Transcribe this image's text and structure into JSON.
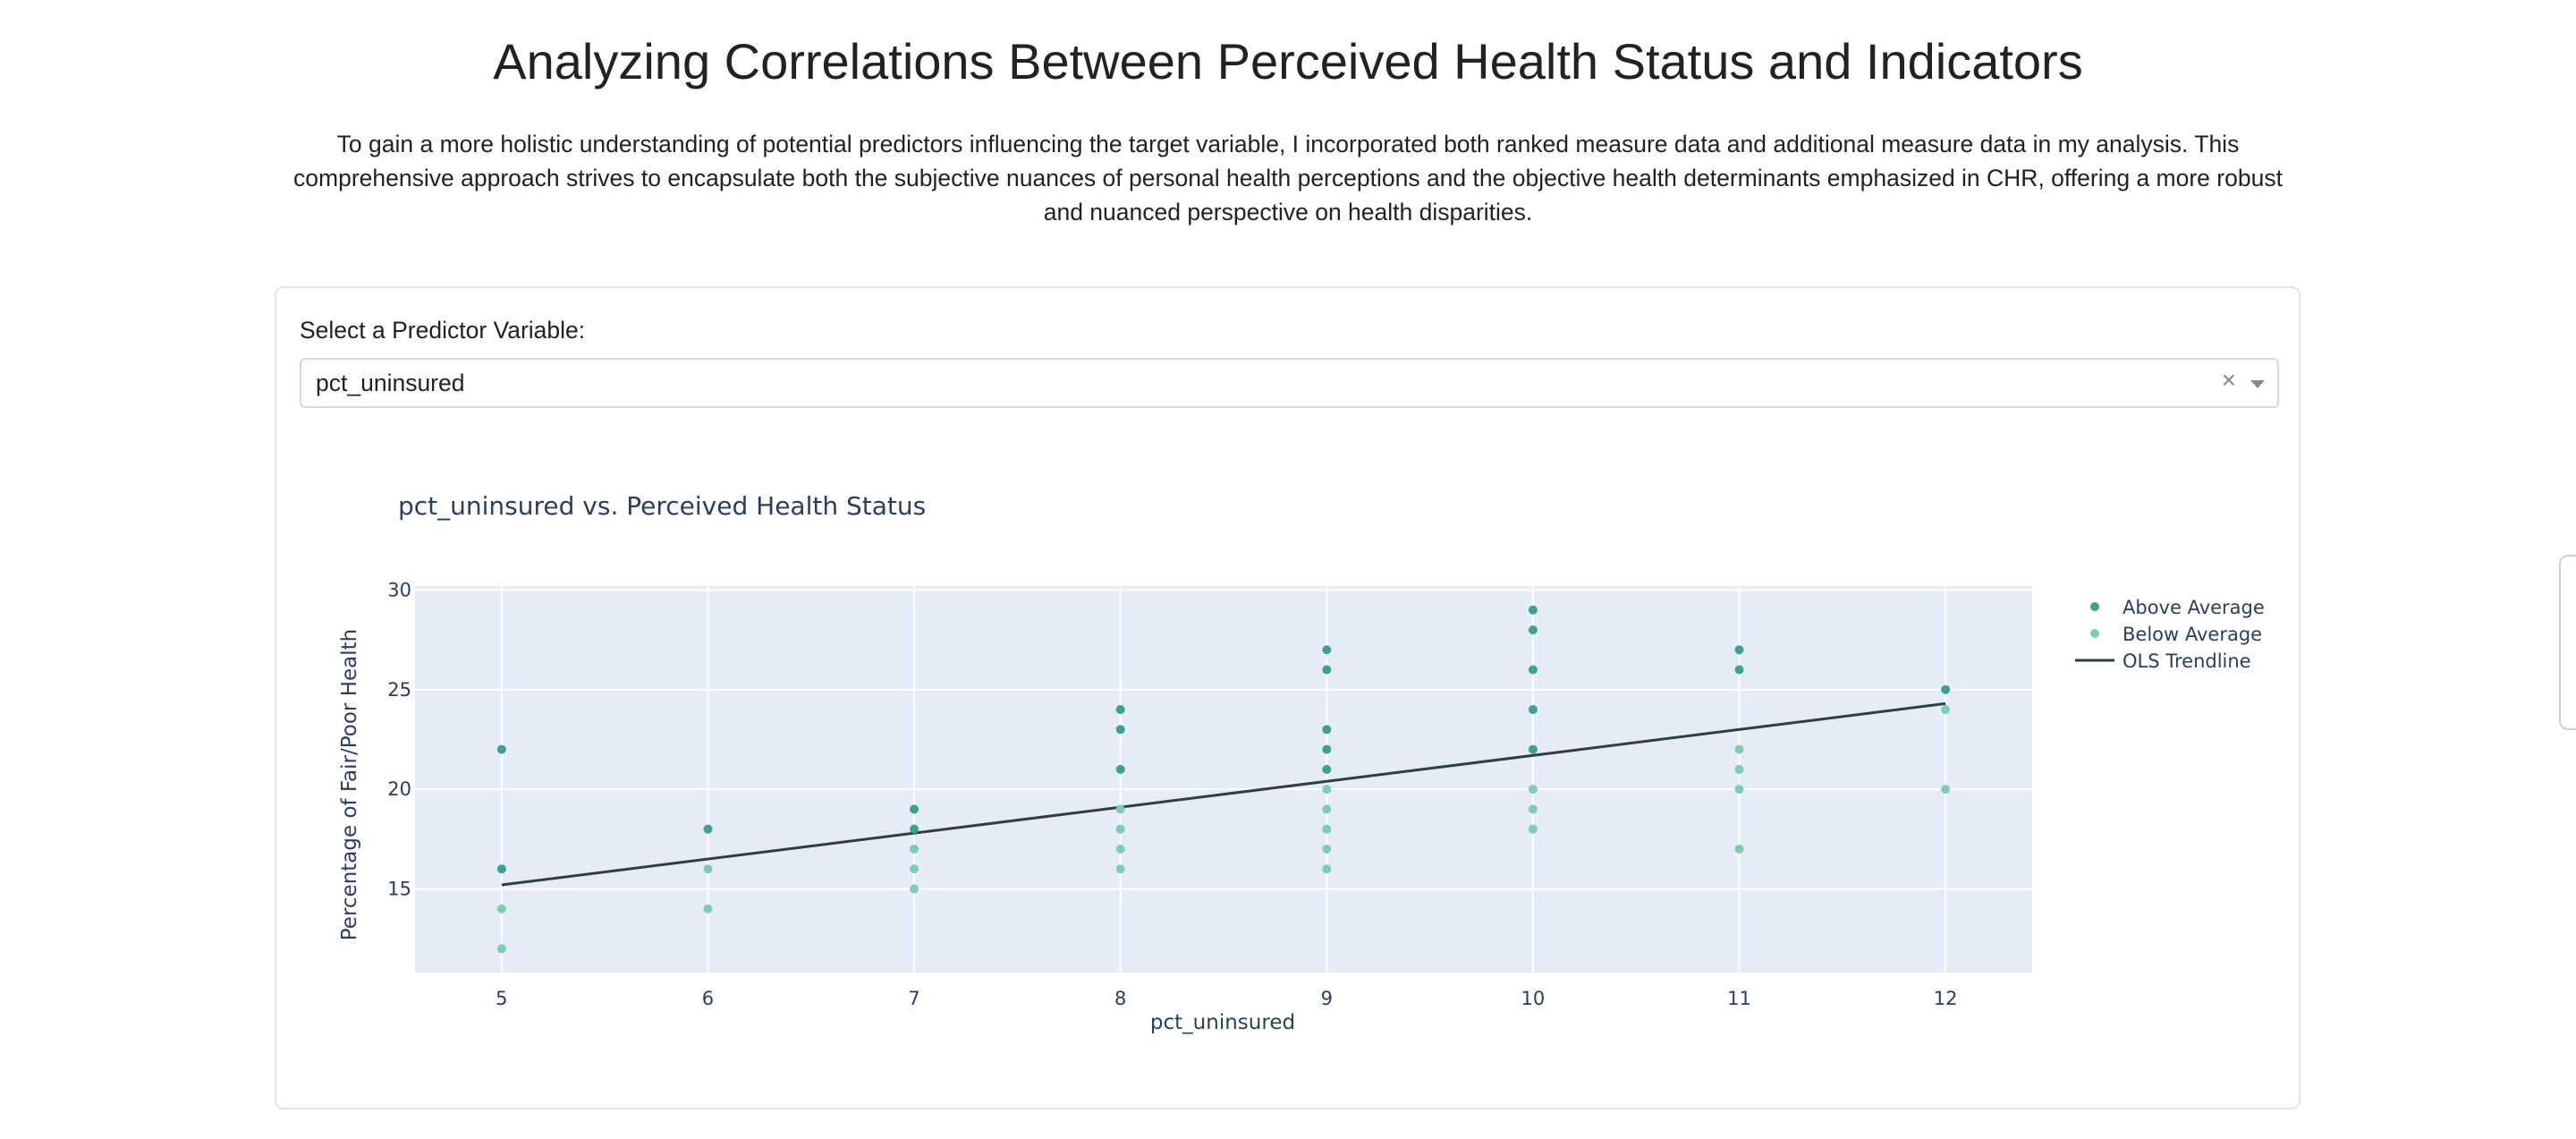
{
  "page": {
    "title": "Analyzing Correlations Between Perceived Health Status and Indicators",
    "intro": "To gain a more holistic understanding of potential predictors influencing the target variable, I incorporated both ranked measure data and additional measure data in my analysis. This comprehensive approach strives to encapsulate both the subjective nuances of personal health perceptions and the objective health determinants emphasized in CHR, offering a more robust and nuanced perspective on health disparities."
  },
  "selector": {
    "label": "Select a Predictor Variable:",
    "value": "pct_uninsured",
    "clear_glyph": "×"
  },
  "icons": {
    "clear": "close-icon",
    "dropdown": "chevron-down-icon"
  },
  "chart_data": {
    "type": "scatter",
    "title": "pct_uninsured vs. Perceived Health Status",
    "xlabel": "pct_uninsured",
    "ylabel": "Percentage of Fair/Poor Health",
    "xlim": [
      4.58,
      12.42
    ],
    "ylim": [
      10.8,
      30.2
    ],
    "x_ticks": [
      5,
      6,
      7,
      8,
      9,
      10,
      11,
      12
    ],
    "y_ticks": [
      15,
      20,
      25,
      30
    ],
    "grid": true,
    "legend_position": "top-right",
    "series": [
      {
        "name": "Above Average",
        "color": "#3e9f93",
        "points": [
          [
            5,
            22
          ],
          [
            5,
            16
          ],
          [
            6,
            18
          ],
          [
            7,
            19
          ],
          [
            7,
            18
          ],
          [
            8,
            24
          ],
          [
            8,
            23
          ],
          [
            8,
            21
          ],
          [
            9,
            27
          ],
          [
            9,
            26
          ],
          [
            9,
            23
          ],
          [
            9,
            22
          ],
          [
            9,
            21
          ],
          [
            10,
            29
          ],
          [
            10,
            28
          ],
          [
            10,
            26
          ],
          [
            10,
            24
          ],
          [
            10,
            22
          ],
          [
            11,
            27
          ],
          [
            11,
            26
          ],
          [
            12,
            25
          ]
        ]
      },
      {
        "name": "Below Average",
        "color": "#7fcdb1",
        "points": [
          [
            5,
            14
          ],
          [
            5,
            12
          ],
          [
            6,
            16
          ],
          [
            6,
            14
          ],
          [
            7,
            17
          ],
          [
            7,
            16
          ],
          [
            7,
            15
          ],
          [
            8,
            19
          ],
          [
            8,
            18
          ],
          [
            8,
            17
          ],
          [
            8,
            16
          ],
          [
            9,
            20
          ],
          [
            9,
            19
          ],
          [
            9,
            18
          ],
          [
            9,
            17
          ],
          [
            9,
            16
          ],
          [
            10,
            20
          ],
          [
            10,
            19
          ],
          [
            10,
            18
          ],
          [
            11,
            22
          ],
          [
            11,
            21
          ],
          [
            11,
            20
          ],
          [
            11,
            17
          ],
          [
            12,
            24
          ],
          [
            12,
            20
          ]
        ]
      }
    ],
    "trendline": {
      "name": "OLS Trendline",
      "color": "#2f3e46",
      "start": [
        5,
        15.2
      ],
      "end": [
        12,
        24.3
      ]
    }
  }
}
